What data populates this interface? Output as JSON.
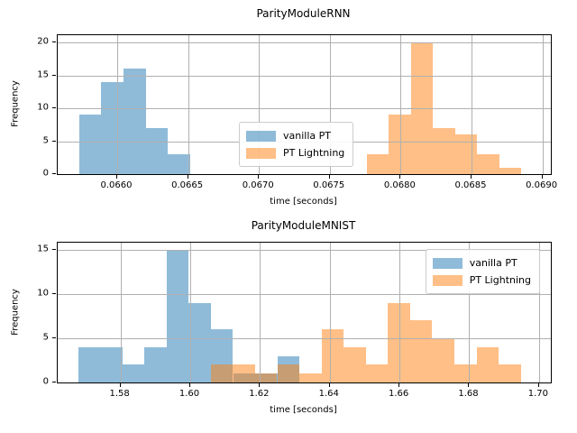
{
  "figure": {
    "background": "#ffffff",
    "grid_color": "#b0b0b0",
    "spine_color": "#000000"
  },
  "chart_data": [
    {
      "type": "histogram",
      "title": "ParityModuleRNN",
      "xlabel": "time [seconds]",
      "ylabel": "Frequency",
      "xlim": [
        0.06558,
        0.06906
      ],
      "ylim": [
        0,
        21.1
      ],
      "xticks": [
        0.066,
        0.0665,
        0.067,
        0.0675,
        0.068,
        0.0685,
        0.069
      ],
      "xtick_labels": [
        "0.0660",
        "0.0665",
        "0.0670",
        "0.0675",
        "0.0680",
        "0.0685",
        "0.0690"
      ],
      "yticks": [
        0,
        5,
        10,
        15,
        20
      ],
      "ytick_labels": [
        "0",
        "5",
        "10",
        "15",
        "20"
      ],
      "grid": true,
      "legend": {
        "location": "center",
        "labels": [
          "vanilla PT",
          "PT Lightning"
        ]
      },
      "series": [
        {
          "name": "vanilla PT",
          "color": "#1f77b4",
          "alpha": 0.5,
          "bin_start": 0.065731,
          "bin_width": 0.000157,
          "counts": [
            9,
            14,
            16,
            7,
            3
          ]
        },
        {
          "name": "PT Lightning",
          "color": "#ff7f0e",
          "alpha": 0.5,
          "bin_start": 0.06776,
          "bin_width": 0.000156,
          "counts": [
            3,
            9,
            20,
            7,
            6,
            3,
            1
          ]
        }
      ]
    },
    {
      "type": "histogram",
      "title": "ParityModuleMNIST",
      "xlabel": "time [seconds]",
      "ylabel": "Frequency",
      "xlim": [
        1.562,
        1.7034
      ],
      "ylim": [
        0,
        15.8
      ],
      "xticks": [
        1.58,
        1.6,
        1.62,
        1.64,
        1.66,
        1.68,
        1.7
      ],
      "xtick_labels": [
        "1.58",
        "1.60",
        "1.62",
        "1.64",
        "1.66",
        "1.68",
        "1.70"
      ],
      "yticks": [
        0,
        5,
        10,
        15
      ],
      "ytick_labels": [
        "0",
        "5",
        "10",
        "15"
      ],
      "grid": true,
      "legend": {
        "location": "upper right",
        "labels": [
          "vanilla PT",
          "PT Lightning"
        ]
      },
      "series": [
        {
          "name": "vanilla PT",
          "color": "#1f77b4",
          "alpha": 0.5,
          "bin_start": 1.5679,
          "bin_width": 0.00634,
          "counts": [
            4,
            4,
            2,
            4,
            15,
            9,
            6,
            1,
            1,
            3
          ]
        },
        {
          "name": "PT Lightning",
          "color": "#ff7f0e",
          "alpha": 0.5,
          "bin_start": 1.6059,
          "bin_width": 0.00635,
          "counts": [
            2,
            2,
            1,
            2,
            1,
            6,
            4,
            2,
            9,
            7,
            5,
            2,
            4,
            2
          ]
        }
      ]
    }
  ]
}
